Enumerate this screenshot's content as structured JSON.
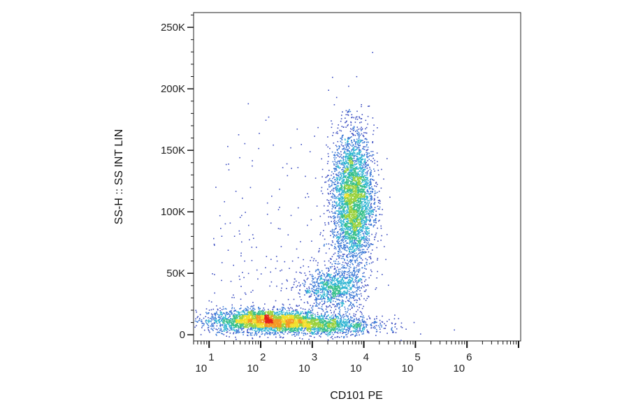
{
  "chart_data": {
    "type": "scatter",
    "title": "",
    "xlabel": "CD101 PE",
    "ylabel": "SS-H :: SS INT LIN",
    "x_scale": "log",
    "xlim": [
      5,
      11000000
    ],
    "ylim": [
      -5000,
      262000
    ],
    "x_ticks": [
      {
        "base": "10",
        "exp": "1",
        "value": 10
      },
      {
        "base": "10",
        "exp": "2",
        "value": 100
      },
      {
        "base": "10",
        "exp": "3",
        "value": 1000
      },
      {
        "base": "10",
        "exp": "4",
        "value": 10000
      },
      {
        "base": "10",
        "exp": "5",
        "value": 100000
      },
      {
        "base": "10",
        "exp": "6",
        "value": 1000000
      }
    ],
    "y_ticks": [
      {
        "label": "0",
        "value": 0
      },
      {
        "label": "50K",
        "value": 50000
      },
      {
        "label": "100K",
        "value": 100000
      },
      {
        "label": "150K",
        "value": 150000
      },
      {
        "label": "200K",
        "value": 200000
      },
      {
        "label": "250K",
        "value": 250000
      }
    ],
    "grid": false,
    "colormap": [
      "#3b4cc0",
      "#3a78d6",
      "#2fb5d3",
      "#38c08a",
      "#9bd23f",
      "#f2e02c",
      "#f49a25",
      "#e3201b"
    ],
    "populations": [
      {
        "name": "",
        "x_center": 120,
        "y_center": 12000,
        "count_share": 0.3,
        "x_spread_decades": 0.55,
        "y_spread": 4500
      },
      {
        "name": "",
        "x_center": 1500,
        "y_center": 8000,
        "count_share": 0.14,
        "x_spread_decades": 0.6,
        "y_spread": 4000
      },
      {
        "name": "",
        "x_center": 2500,
        "y_center": 38000,
        "count_share": 0.1,
        "x_spread_decades": 0.3,
        "y_spread": 8000
      },
      {
        "name": "",
        "x_center": 6000,
        "y_center": 110000,
        "count_share": 0.4,
        "x_spread_decades": 0.2,
        "y_spread": 28000
      }
    ]
  }
}
